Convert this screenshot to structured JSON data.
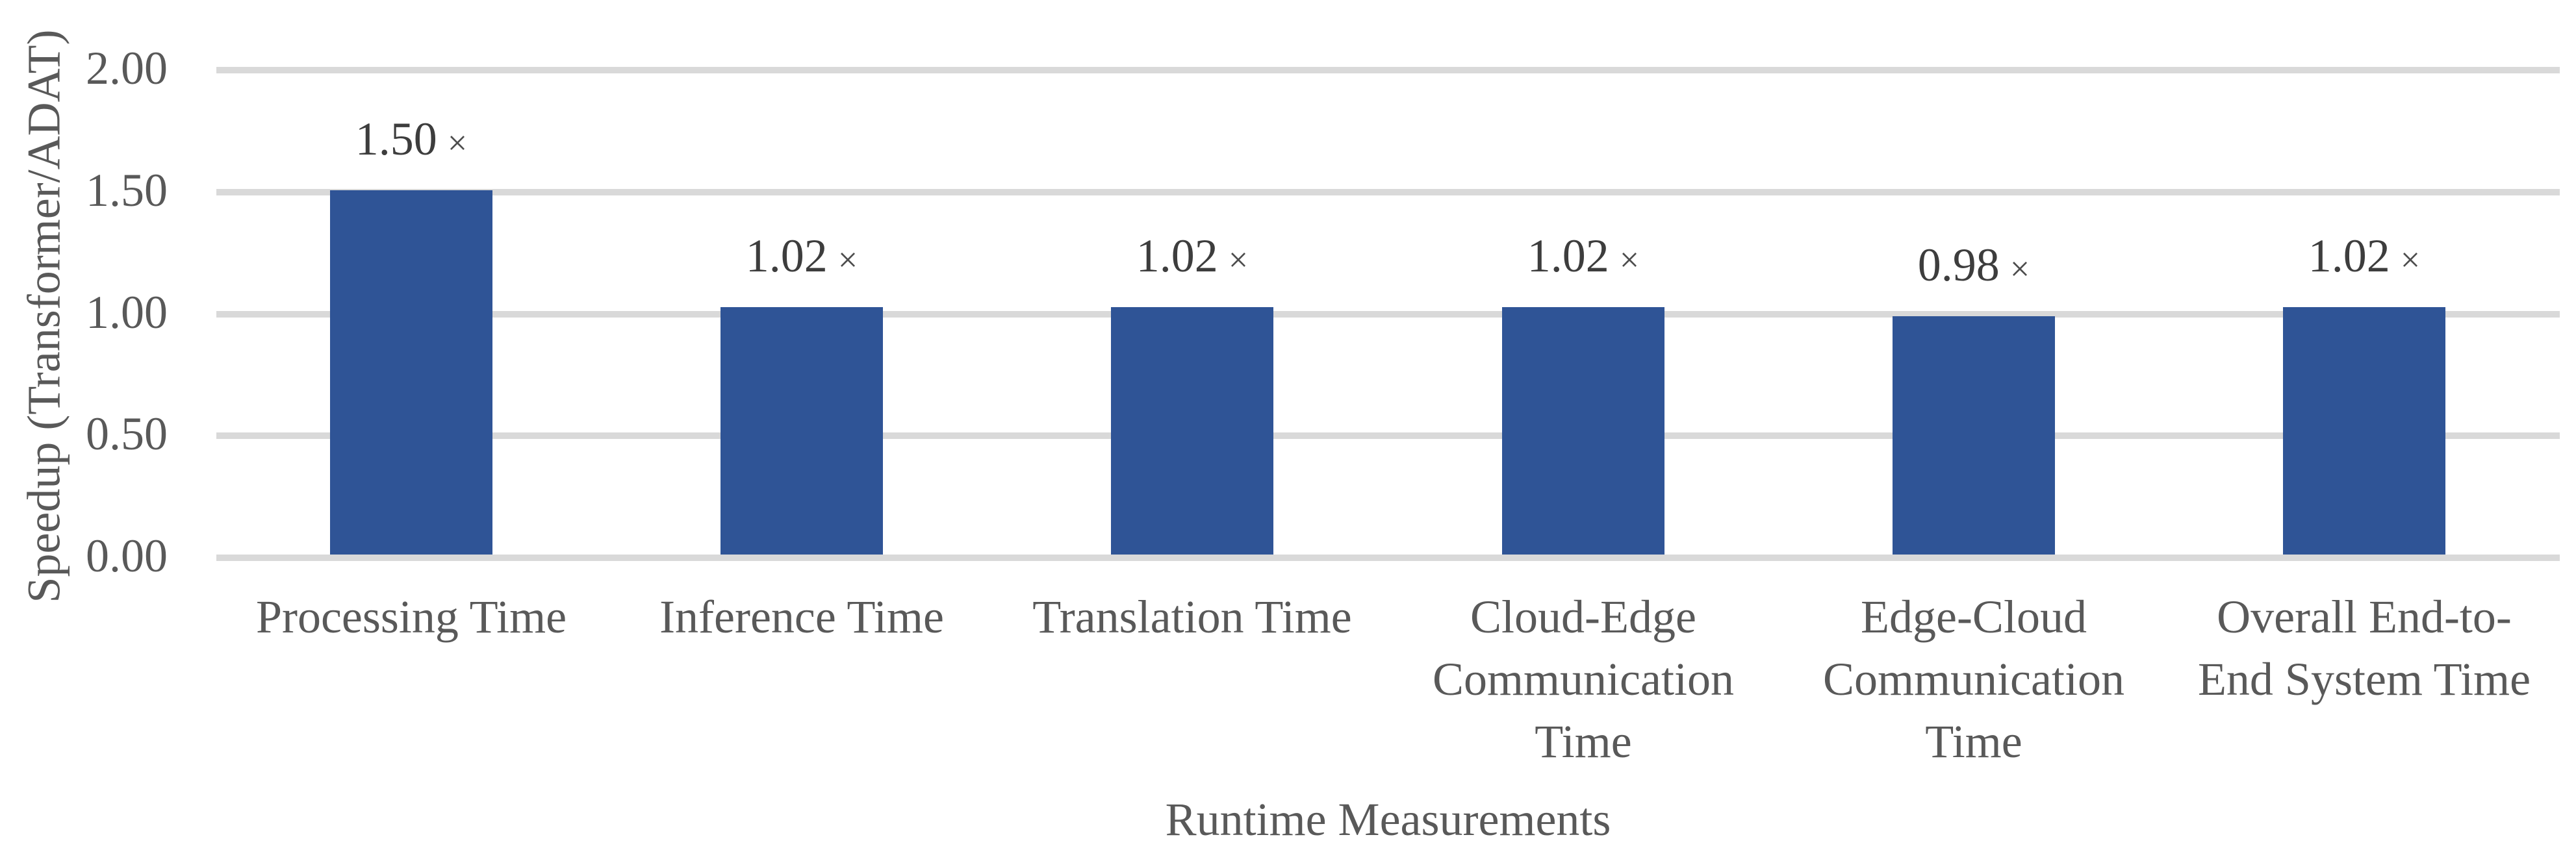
{
  "chart_data": {
    "type": "bar",
    "title": "",
    "xlabel": "Runtime Measurements",
    "ylabel": "Speedup (Transformer/ADAT)",
    "categories": [
      "Processing Time",
      "Inference Time",
      "Translation Time",
      "Cloud-Edge Communication Time",
      "Edge-Cloud Communication Time",
      "Overall End-to-End System Time"
    ],
    "category_lines": [
      [
        "Processing Time"
      ],
      [
        "Inference Time"
      ],
      [
        "Translation Time"
      ],
      [
        "Cloud-Edge",
        "Communication",
        "Time"
      ],
      [
        "Edge-Cloud",
        "Communication",
        "Time"
      ],
      [
        "Overall End-to-",
        "End System Time"
      ]
    ],
    "values": [
      1.5,
      1.02,
      1.02,
      1.02,
      0.98,
      1.02
    ],
    "value_labels": [
      "1.50",
      "1.02",
      "1.02",
      "1.02",
      "0.98",
      "1.02"
    ],
    "value_suffix": "×",
    "yticks": [
      {
        "value": 0.0,
        "label": "0.00"
      },
      {
        "value": 0.5,
        "label": "0.50"
      },
      {
        "value": 1.0,
        "label": "1.00"
      },
      {
        "value": 1.5,
        "label": "1.50"
      },
      {
        "value": 2.0,
        "label": "2.00"
      }
    ],
    "ylim": [
      0,
      2
    ],
    "grid": true,
    "legend": "none",
    "colors": {
      "bar": "#2F5496",
      "gridline": "#D9D9D9",
      "axis_text": "#595959",
      "value_text": "#3D3D3D"
    }
  }
}
